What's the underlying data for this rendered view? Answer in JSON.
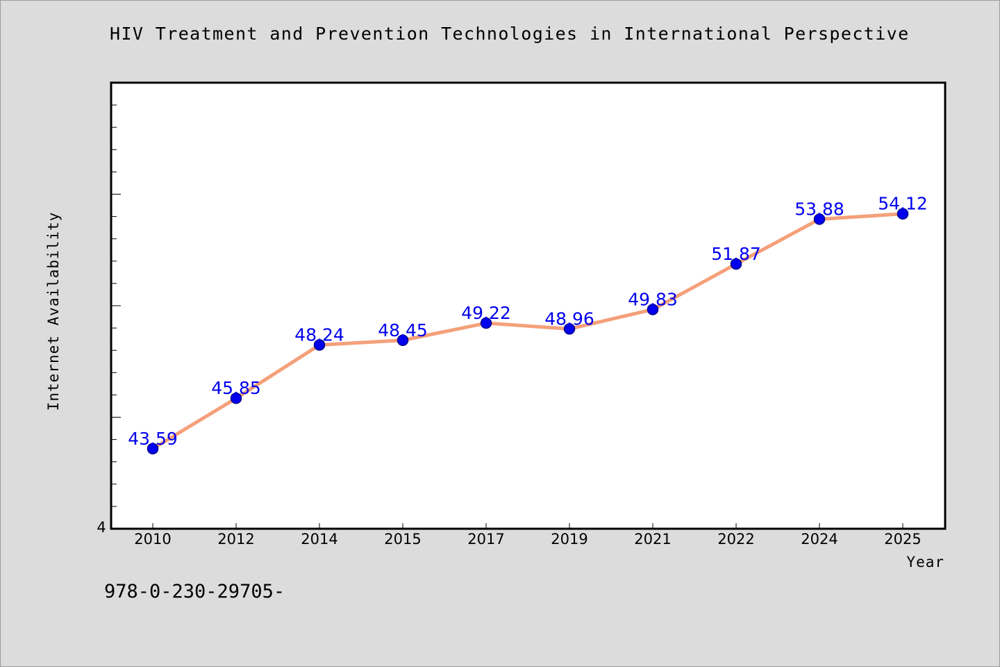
{
  "title": "HIV Treatment and Prevention Technologies in International Perspective",
  "footer_code": "978-0-230-29705-",
  "colors": {
    "background": "#dcdcdc",
    "plot_background": "#ffffff",
    "line": "#f4a07a",
    "marker": "#0000ee",
    "data_label": "#0000ee"
  },
  "chart_data": {
    "type": "line",
    "title": "HIV Treatment and Prevention Technologies in International Perspective",
    "xlabel": "Year",
    "ylabel": "Internet Availability",
    "categories": [
      "2010",
      "2012",
      "2014",
      "2015",
      "2017",
      "2019",
      "2021",
      "2022",
      "2024",
      "2025"
    ],
    "series": [
      {
        "values": [
          43.59,
          45.85,
          48.24,
          48.45,
          49.22,
          48.96,
          49.83,
          51.87,
          53.88,
          54.12
        ]
      }
    ],
    "data_labels": [
      "43.59",
      "45.85",
      "48.24",
      "48.45",
      "49.22",
      "48.96",
      "49.83",
      "51.87",
      "53.88",
      "54.12"
    ],
    "ylim": [
      40,
      60
    ],
    "y_tick_label": "4",
    "grid": false,
    "legend": "none"
  }
}
